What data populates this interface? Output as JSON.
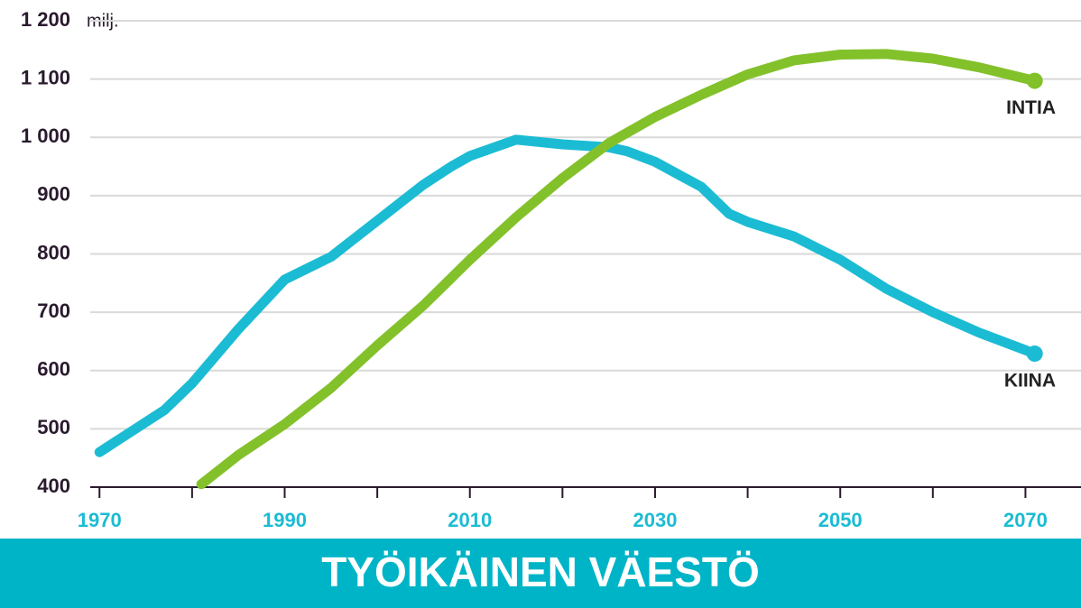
{
  "chart_data": {
    "type": "line",
    "title": "TYÖIKÄINEN VÄESTÖ",
    "y_unit": "milj.",
    "xlim": [
      1969,
      2076
    ],
    "xticks": [
      1970,
      1990,
      2010,
      2030,
      2050,
      2070
    ],
    "xminor_ticks": [
      1980,
      2000,
      2020,
      2040,
      2060
    ],
    "ylim": [
      400,
      1200
    ],
    "yticks": [
      400,
      500,
      600,
      700,
      800,
      900,
      {
        "value": 1000,
        "label": "1 000"
      },
      {
        "value": 1100,
        "label": "1 100"
      },
      {
        "value": 1200,
        "label": "1 200"
      }
    ],
    "grid": true,
    "series": [
      {
        "name": "KIINA",
        "color": "#1bbcd3",
        "x": [
          1970,
          1977,
          1980,
          1985,
          1990,
          1995,
          2000,
          2005,
          2008,
          2010,
          2015,
          2020,
          2025,
          2027,
          2030,
          2035,
          2038,
          2040,
          2045,
          2050,
          2055,
          2060,
          2065,
          2071
        ],
        "values": [
          460,
          532,
          578,
          671,
          756,
          795,
          857,
          919,
          950,
          968,
          996,
          988,
          983,
          976,
          958,
          915,
          869,
          855,
          830,
          790,
          740,
          700,
          665,
          629
        ]
      },
      {
        "name": "INTIA",
        "color": "#83c12b",
        "x": [
          1981,
          1985,
          1990,
          1995,
          2000,
          2005,
          2010,
          2015,
          2020,
          2025,
          2030,
          2035,
          2040,
          2045,
          2050,
          2055,
          2060,
          2065,
          2071
        ],
        "values": [
          405,
          455,
          508,
          570,
          643,
          712,
          790,
          863,
          930,
          990,
          1035,
          1073,
          1108,
          1132,
          1142,
          1143,
          1135,
          1120,
          1097
        ]
      }
    ]
  }
}
